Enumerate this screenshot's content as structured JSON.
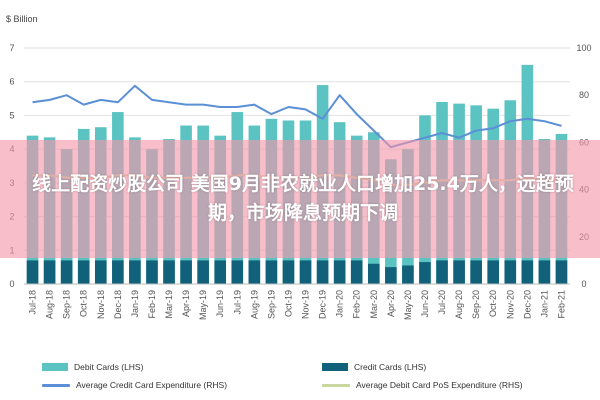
{
  "chart_data": {
    "type": "bar",
    "left_axis_unit": "$ Billion",
    "categories": [
      "Jul-18",
      "Aug-18",
      "Sep-18",
      "Oct-18",
      "Nov-18",
      "Dec-18",
      "Jan-19",
      "Feb-19",
      "Mar-19",
      "Apr-19",
      "May-19",
      "Jun-19",
      "Jul-19",
      "Aug-19",
      "Sep-19",
      "Oct-19",
      "Nov-19",
      "Dec-19",
      "Jan-20",
      "Feb-20",
      "Mar-20",
      "Apr-20",
      "May-20",
      "Jun-20",
      "Jul-20",
      "Aug-20",
      "Sep-20",
      "Oct-20",
      "Nov-20",
      "Dec-20",
      "Jan-21",
      "Feb-21"
    ],
    "x_tick_labels": [
      "Jul-18",
      "",
      "Sep-18",
      "",
      "Oct-18",
      "",
      "Dec-18",
      "",
      "Feb-19",
      "",
      "Mar-19",
      "",
      "Apr-19",
      "",
      "May-19",
      "",
      "Jun-19",
      "",
      "Jul-19",
      "",
      "Aug-19",
      "",
      "Sep-19",
      "",
      "Oct-19",
      "",
      "Nov-19",
      "",
      "Dec-19",
      "",
      "Jan-20",
      "",
      "Feb-20",
      "",
      "Mar-20",
      "",
      "Apr-20",
      "",
      "May-20",
      "",
      "Jun-20",
      "",
      "Jul-20",
      "",
      "Aug-20",
      "",
      "Sep-20",
      "",
      "Oct-20",
      "",
      "Nov-20",
      "",
      "Dec-20",
      "",
      "Jan-21",
      "",
      "Feb-21"
    ],
    "y_left": {
      "min": 0,
      "max": 7,
      "ticks": [
        0,
        1,
        2,
        3,
        4,
        5,
        6,
        7
      ]
    },
    "y_right": {
      "min": 0,
      "max": 100,
      "ticks": [
        0,
        20,
        40,
        60,
        80,
        100
      ]
    },
    "series": [
      {
        "name": "Debit Cards (LHS)",
        "kind": "bar",
        "axis": "left",
        "color": "#5cc3c3",
        "values": [
          4.4,
          4.35,
          4.0,
          4.6,
          4.65,
          5.1,
          4.35,
          4.0,
          4.3,
          4.7,
          4.7,
          4.4,
          5.1,
          4.7,
          4.9,
          4.85,
          4.85,
          5.9,
          4.8,
          4.4,
          4.5,
          3.7,
          4.0,
          5.0,
          5.4,
          5.35,
          5.3,
          5.2,
          5.45,
          6.5,
          4.3,
          4.45
        ]
      },
      {
        "name": "Credit Cards (LHS)",
        "kind": "bar",
        "axis": "left",
        "color": "#12617a",
        "values": [
          0.7,
          0.7,
          0.7,
          0.7,
          0.7,
          0.7,
          0.7,
          0.7,
          0.7,
          0.7,
          0.7,
          0.7,
          0.7,
          0.7,
          0.7,
          0.7,
          0.7,
          0.7,
          0.7,
          0.7,
          0.6,
          0.5,
          0.55,
          0.65,
          0.7,
          0.7,
          0.7,
          0.7,
          0.7,
          0.7,
          0.7,
          0.7
        ]
      },
      {
        "name": "Average Credit Card Expenditure (RHS)",
        "kind": "line",
        "axis": "right",
        "color": "#5b8fd6",
        "values": [
          77,
          78,
          80,
          76,
          78,
          77,
          84,
          78,
          77,
          76,
          76,
          75,
          75,
          76,
          72,
          75,
          74,
          70,
          80,
          72,
          65,
          58,
          60,
          62,
          64,
          62,
          65,
          66,
          69,
          70,
          69,
          67
        ]
      },
      {
        "name": "Average Debit Card PoS Expenditure (RHS)",
        "kind": "line",
        "axis": "right",
        "color": "#c8d8a0",
        "values": [
          46,
          46,
          45,
          45,
          45,
          46,
          46,
          45,
          45,
          45,
          45,
          45,
          46,
          46,
          45,
          45,
          45,
          46,
          46,
          45,
          44,
          42,
          42,
          43,
          44,
          44,
          44,
          44,
          44,
          45,
          44,
          44
        ]
      }
    ]
  },
  "banner": {
    "headline": "线上配资炒股公司 美国9月非农就业人口增加25.4万人，远超预期，市场降息预期下调"
  },
  "legend": {
    "debit": "Debit Cards (LHS)",
    "credit": "Credit Cards (LHS)",
    "avg_credit": "Average Credit Card Expenditure (RHS)",
    "avg_debit": "Average Debit Card PoS Expenditure (RHS)"
  }
}
